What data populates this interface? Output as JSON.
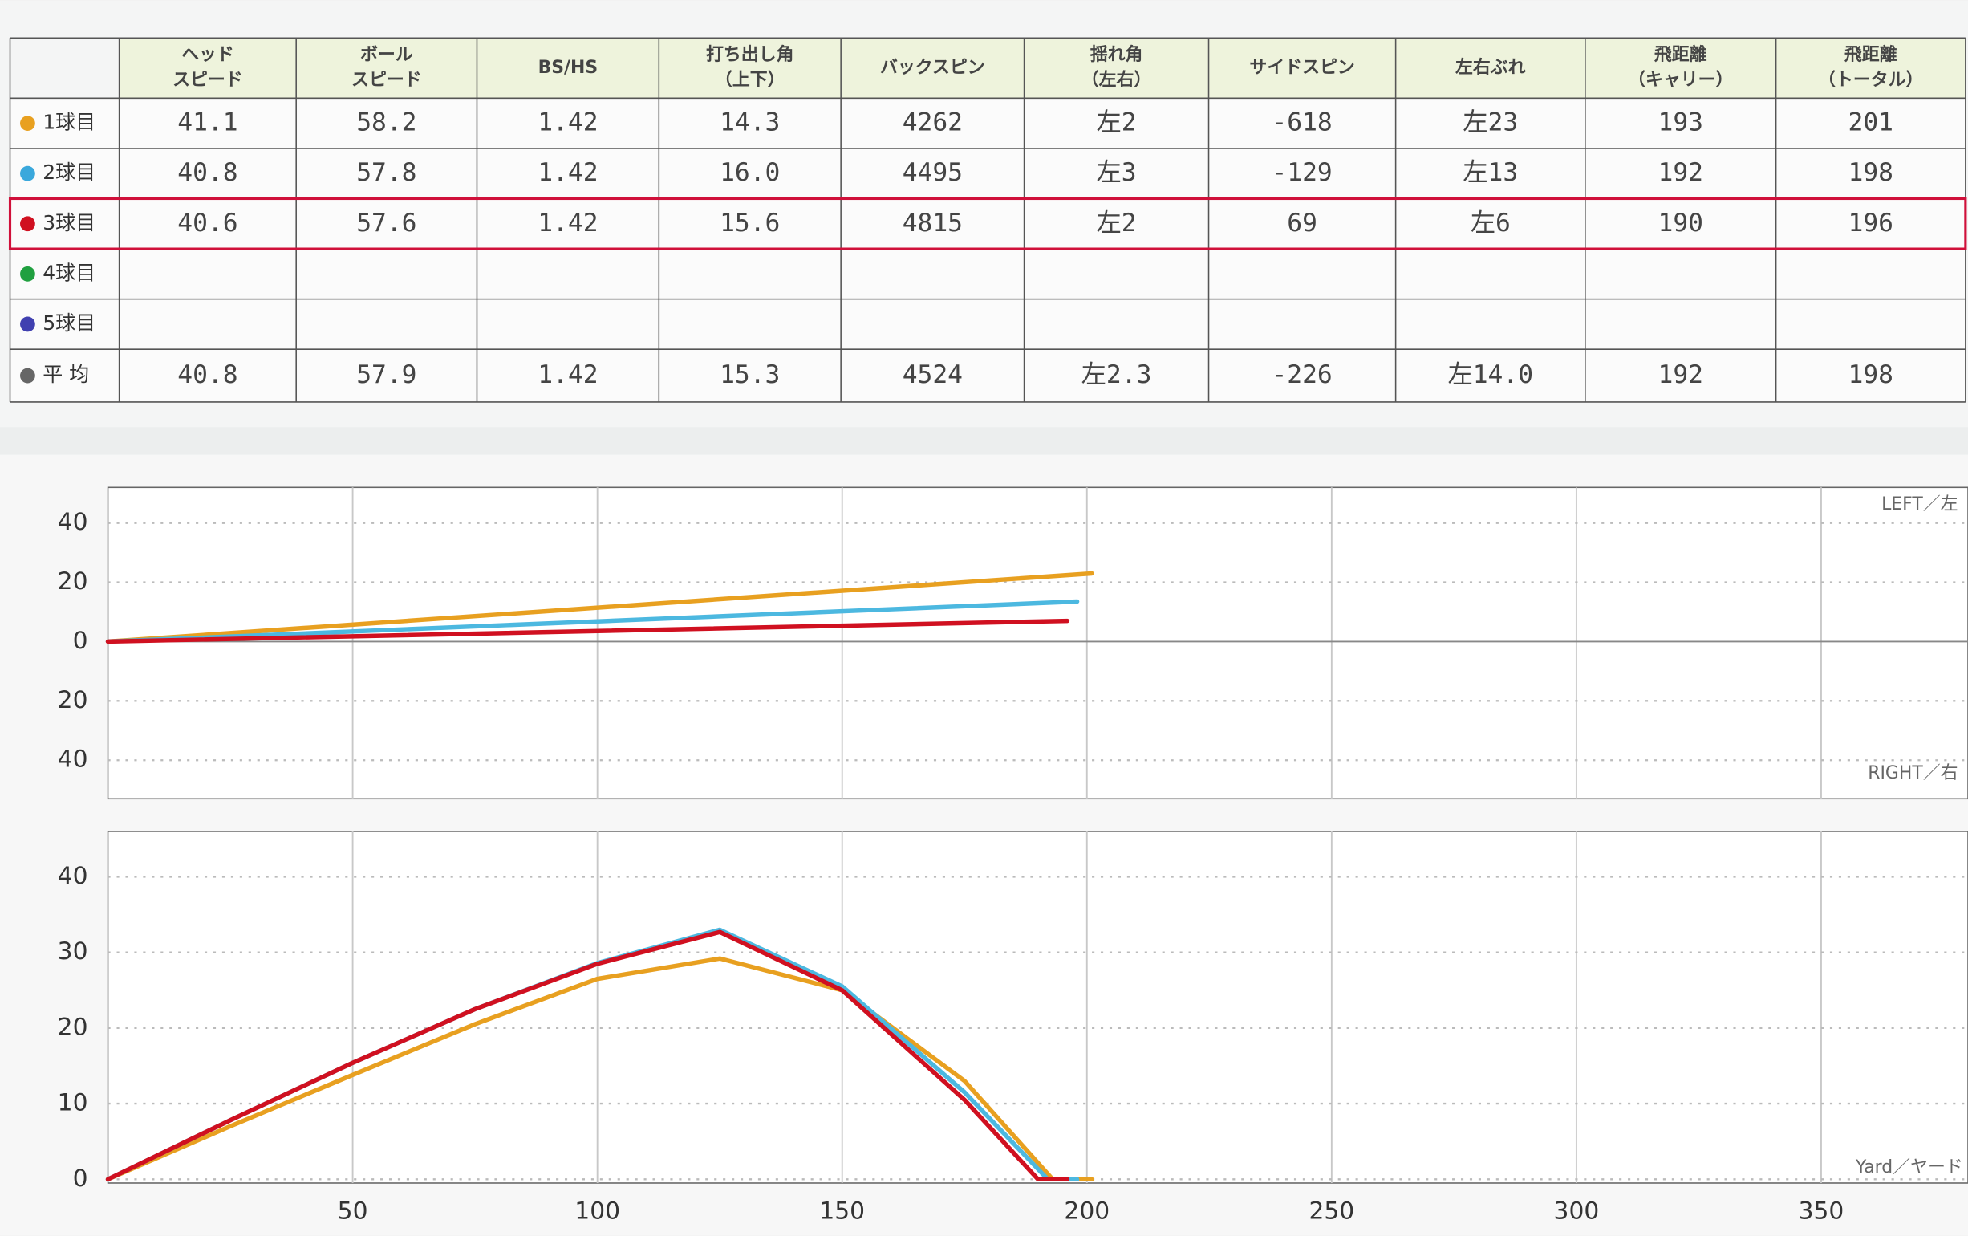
{
  "table": {
    "header": [
      [
        "ヘッド",
        "スピード"
      ],
      [
        "ボール",
        "スピード"
      ],
      [
        "BS/HS"
      ],
      [
        "打ち出し角",
        "（上下）"
      ],
      [
        "バックスピン"
      ],
      [
        "揺れ角",
        "（左右）"
      ],
      [
        "サイドスピン"
      ],
      [
        "左右ぶれ"
      ],
      [
        "飛距離",
        "（キャリー）"
      ],
      [
        "飛距離",
        "（トータル）"
      ]
    ],
    "rows": [
      {
        "label": "1球目",
        "color": "#e8a020",
        "values": [
          "41.1",
          "58.2",
          "1.42",
          "14.3",
          "4262",
          "左2",
          "-618",
          "左23",
          "193",
          "201"
        ]
      },
      {
        "label": "2球目",
        "color": "#3aa8dc",
        "values": [
          "40.8",
          "57.8",
          "1.42",
          "16.0",
          "4495",
          "左3",
          "-129",
          "左13",
          "192",
          "198"
        ]
      },
      {
        "label": "3球目",
        "color": "#d01020",
        "values": [
          "40.6",
          "57.6",
          "1.42",
          "15.6",
          "4815",
          "左2",
          "69",
          "左6",
          "190",
          "196"
        ]
      },
      {
        "label": "4球目",
        "color": "#20a040",
        "values": []
      },
      {
        "label": "5球目",
        "color": "#4040b0",
        "values": []
      },
      {
        "label": "平 均",
        "color": "#666666",
        "values": [
          "40.8",
          "57.9",
          "1.42",
          "15.3",
          "4524",
          "左2.3",
          "-226",
          "左14.0",
          "192",
          "198"
        ]
      }
    ]
  },
  "chart_data": [
    {
      "type": "line",
      "annotations": [
        "LEFT／左",
        "RIGHT／右"
      ],
      "xlim": [
        0,
        380
      ],
      "xticks": [
        50,
        100,
        150,
        200,
        250,
        300,
        350
      ],
      "ylim": [
        -53,
        52
      ],
      "yticks": [
        40,
        20,
        0,
        {
          "value": -20,
          "label": "20"
        },
        {
          "value": -40,
          "label": "40"
        }
      ],
      "series": [
        {
          "color": "#e8a020",
          "x": [
            0,
            201
          ],
          "values": [
            0,
            23
          ]
        },
        {
          "color": "#4cb8e0",
          "x": [
            0,
            198
          ],
          "values": [
            0,
            13.5
          ]
        },
        {
          "color": "#d01020",
          "x": [
            0,
            196
          ],
          "values": [
            0,
            7
          ]
        }
      ]
    },
    {
      "type": "line",
      "x_label": "Yard／ヤード",
      "xlim": [
        0,
        380
      ],
      "xticks": [
        50,
        100,
        150,
        200,
        250,
        300,
        350
      ],
      "ylim": [
        -0.5,
        46
      ],
      "yticks": [
        0,
        10,
        20,
        30,
        40
      ],
      "series": [
        {
          "color": "#e8a020",
          "x": [
            0,
            25,
            50,
            75,
            100,
            125,
            150,
            175,
            193,
            201
          ],
          "values": [
            0,
            7,
            13.8,
            20.5,
            26.5,
            29.2,
            25,
            13,
            0,
            0
          ]
        },
        {
          "color": "#4cb8e0",
          "x": [
            0,
            25,
            50,
            75,
            100,
            125,
            150,
            175,
            192,
            198
          ],
          "values": [
            0,
            7.8,
            15.4,
            22.5,
            28.6,
            33,
            25.5,
            11.5,
            0,
            0
          ]
        },
        {
          "color": "#d01020",
          "x": [
            0,
            25,
            50,
            75,
            100,
            125,
            150,
            175,
            190,
            196
          ],
          "values": [
            0,
            7.8,
            15.4,
            22.5,
            28.5,
            32.7,
            25,
            10.5,
            0,
            0
          ]
        }
      ]
    }
  ]
}
